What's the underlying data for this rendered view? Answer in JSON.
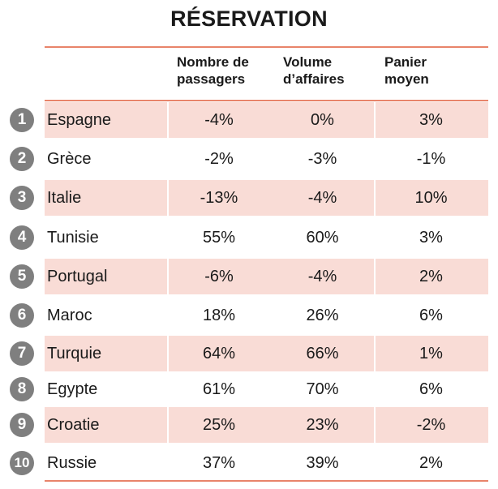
{
  "title": "RÉSERVATION",
  "headers": {
    "passagers_1": "Nombre de",
    "passagers_2": "passagers",
    "affaires_1": "Volume",
    "affaires_2": "d’affaires",
    "panier_1": "Panier",
    "panier_2": "moyen"
  },
  "rows": [
    {
      "rank": "1",
      "country": "Espagne",
      "passagers": "-4%",
      "affaires": "0%",
      "panier": "3%"
    },
    {
      "rank": "2",
      "country": "Grèce",
      "passagers": "-2%",
      "affaires": "-3%",
      "panier": "-1%"
    },
    {
      "rank": "3",
      "country": "Italie",
      "passagers": "-13%",
      "affaires": "-4%",
      "panier": "10%"
    },
    {
      "rank": "4",
      "country": "Tunisie",
      "passagers": "55%",
      "affaires": "60%",
      "panier": "3%"
    },
    {
      "rank": "5",
      "country": "Portugal",
      "passagers": "-6%",
      "affaires": "-4%",
      "panier": "2%"
    },
    {
      "rank": "6",
      "country": "Maroc",
      "passagers": "18%",
      "affaires": "26%",
      "panier": "6%"
    },
    {
      "rank": "7",
      "country": "Turquie",
      "passagers": "64%",
      "affaires": "66%",
      "panier": "1%"
    },
    {
      "rank": "8",
      "country": "Egypte",
      "passagers": "61%",
      "affaires": "70%",
      "panier": "6%"
    },
    {
      "rank": "9",
      "country": "Croatie",
      "passagers": "25%",
      "affaires": "23%",
      "panier": "-2%"
    },
    {
      "rank": "10",
      "country": "Russie",
      "passagers": "37%",
      "affaires": "39%",
      "panier": "2%"
    }
  ],
  "colors": {
    "accent_rule": "#e8846a",
    "row_shade": "#f9dcd6",
    "rank_badge": "#7f7f7f"
  }
}
